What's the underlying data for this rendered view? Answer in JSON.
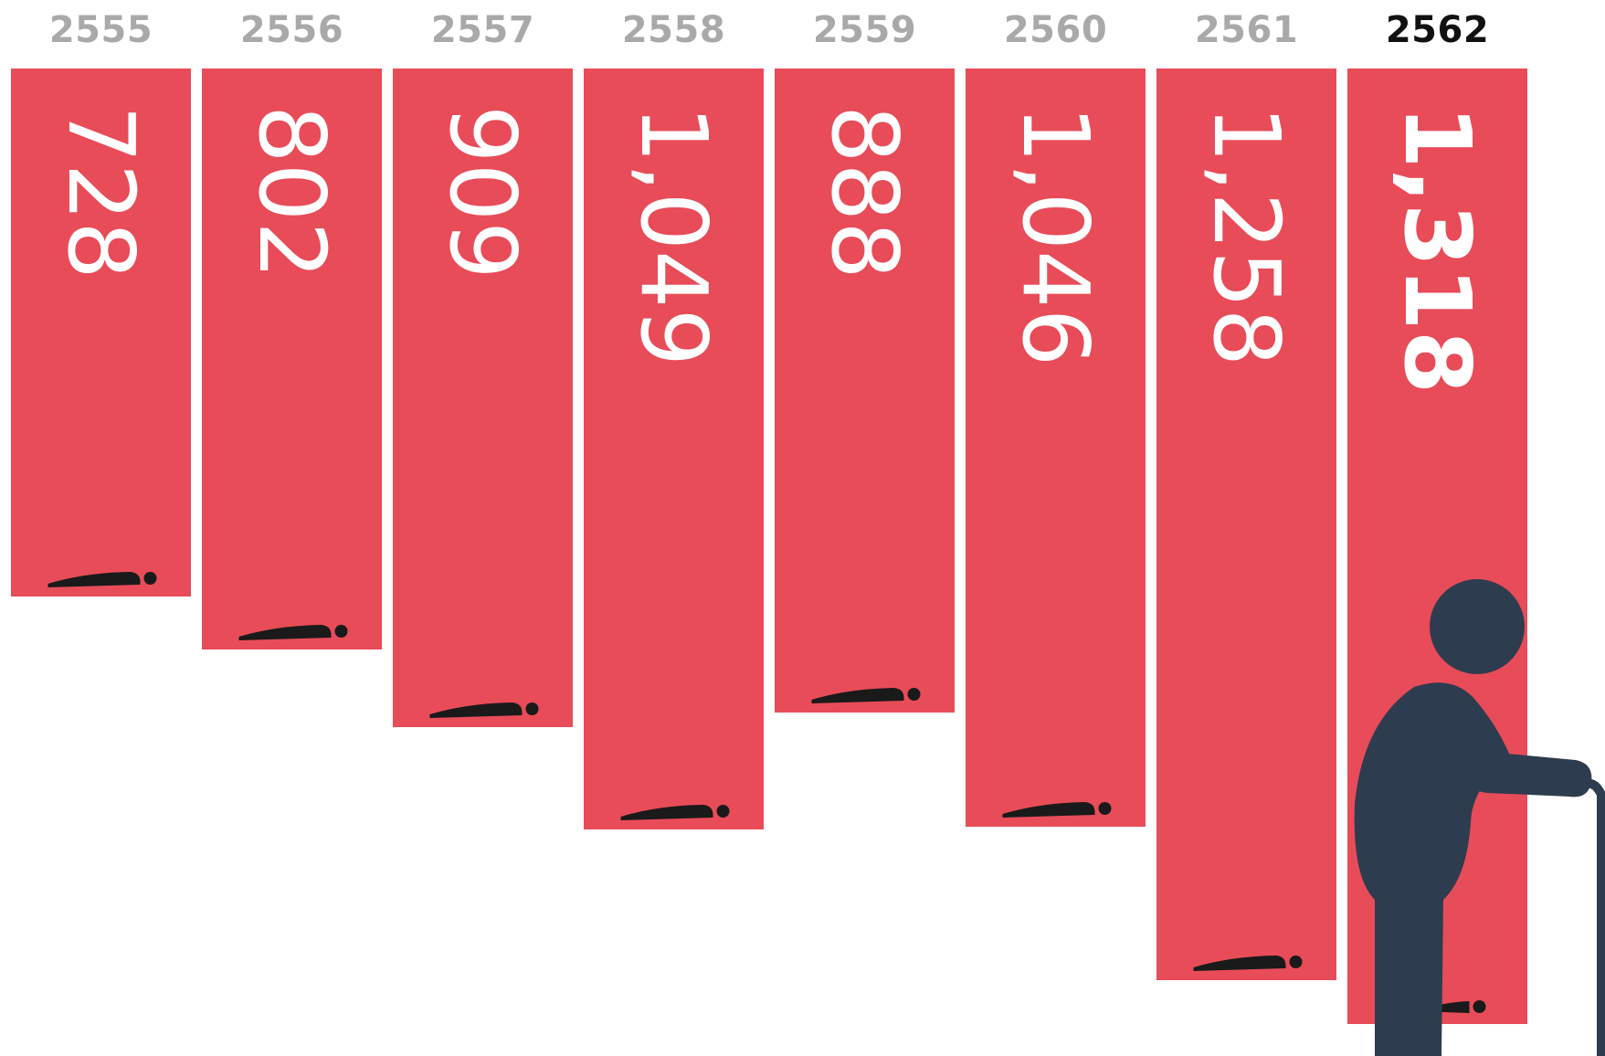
{
  "chart_data": {
    "type": "bar",
    "orientation": "vertical-hanging",
    "categories": [
      "2555",
      "2556",
      "2557",
      "2558",
      "2559",
      "2560",
      "2561",
      "2562"
    ],
    "values": [
      728,
      802,
      909,
      1049,
      888,
      1046,
      1258,
      1318
    ],
    "value_labels": [
      "728",
      "802",
      "909",
      "1,049",
      "888",
      "1,046",
      "1,258",
      "1,318"
    ],
    "highlight_category": "2562",
    "ylim": [
      0,
      1318
    ],
    "grid": false,
    "legend": "none"
  },
  "colors": {
    "bar": "#E84C59",
    "year_label": "#A9A9A9",
    "year_label_highlight": "#111111",
    "value_text": "#FFFFFF",
    "figure": "#2E3C4F",
    "lying_figure": "#1A1A1A"
  },
  "icons": {
    "bar_icon": "lying-person-icon",
    "highlight_icon": "elderly-person-with-cane-icon"
  }
}
